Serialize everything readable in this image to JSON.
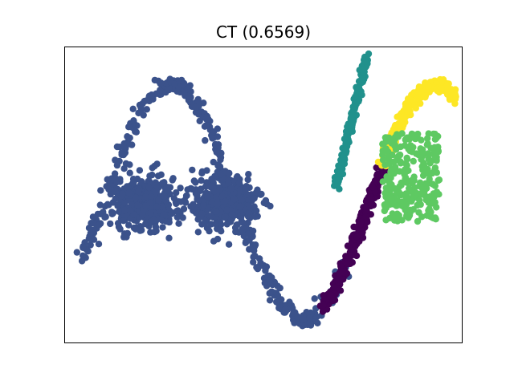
{
  "chart_data": {
    "type": "scatter",
    "title": "CT (0.6569)",
    "xlabel": "",
    "ylabel": "",
    "xlim": [
      -1.5,
      1.5
    ],
    "ylim": [
      -1.0,
      1.0
    ],
    "grid": false,
    "show_ticks": false,
    "legend": "none",
    "clusters": [
      {
        "color": "#3b528b",
        "components": [
          {
            "shape": "sine_segment",
            "x_from": -1.35,
            "x_to": 0.65,
            "y_mid": -0.05,
            "y_amp": 0.8,
            "phase_x": -0.7,
            "period": 2.0,
            "count": 420,
            "spread": 0.025
          },
          {
            "shape": "gaussian_blob",
            "center": [
              -0.9,
              -0.05
            ],
            "sd": [
              0.12,
              0.09
            ],
            "count": 420
          },
          {
            "shape": "gaussian_blob",
            "center": [
              -0.3,
              -0.05
            ],
            "sd": [
              0.12,
              0.09
            ],
            "count": 420
          }
        ]
      },
      {
        "color": "#440154",
        "components": [
          {
            "shape": "sine_segment",
            "x_from": 0.45,
            "x_to": 0.9,
            "y_mid": -0.05,
            "y_amp": 0.8,
            "phase_x": -0.7,
            "period": 2.0,
            "count": 230,
            "spread": 0.02
          }
        ]
      },
      {
        "color": "#fde725",
        "components": [
          {
            "shape": "sine_segment",
            "x_from": 0.9,
            "x_to": 1.45,
            "y_mid": -0.05,
            "y_amp": 0.8,
            "phase_x": -0.7,
            "period": 2.0,
            "count": 260,
            "spread": 0.02
          }
        ]
      },
      {
        "color": "#21918c",
        "components": [
          {
            "shape": "line_segment",
            "from": [
              0.55,
              0.05
            ],
            "to": [
              0.78,
              0.93
            ],
            "count": 200,
            "spread": 0.012
          }
        ]
      },
      {
        "color": "#5ec962",
        "components": [
          {
            "shape": "uniform_box",
            "x_range": [
              0.9,
              1.33
            ],
            "y_range": [
              -0.18,
              0.42
            ],
            "count": 260
          }
        ]
      }
    ]
  }
}
